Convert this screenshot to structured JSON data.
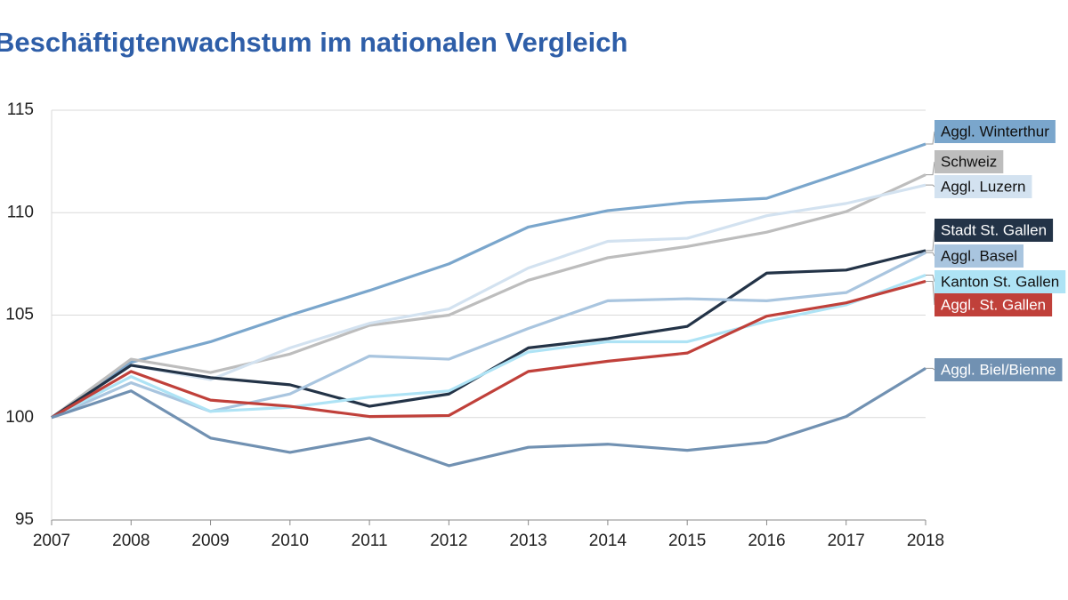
{
  "chart_data": {
    "type": "line",
    "title": "Beschäftigtenwachstum im nationalen Vergleich",
    "categories": [
      "2007",
      "2008",
      "2009",
      "2010",
      "2011",
      "2012",
      "2013",
      "2014",
      "2015",
      "2016",
      "2017",
      "2018"
    ],
    "ylim": [
      95,
      115
    ],
    "yticks": [
      95,
      100,
      105,
      110,
      115
    ],
    "grid": true,
    "series": [
      {
        "name": "Aggl. Winterthur",
        "color": "#7aa6cc",
        "values": [
          100,
          102.7,
          103.7,
          105.0,
          106.2,
          107.5,
          109.3,
          110.1,
          110.5,
          110.7,
          112.0,
          113.35
        ]
      },
      {
        "name": "Schweiz",
        "color": "#bdbdbd",
        "values": [
          100,
          102.85,
          102.2,
          103.1,
          104.5,
          105.0,
          106.7,
          107.8,
          108.35,
          109.05,
          110.05,
          111.85
        ]
      },
      {
        "name": "Aggl. Luzern",
        "color": "#d3e2f0",
        "values": [
          100,
          102.55,
          101.85,
          103.4,
          104.6,
          105.3,
          107.3,
          108.6,
          108.75,
          109.85,
          110.45,
          111.35
        ]
      },
      {
        "name": "Stadt St. Gallen",
        "color": "#233347",
        "values": [
          100,
          102.55,
          101.95,
          101.6,
          100.55,
          101.15,
          103.4,
          103.85,
          104.45,
          107.05,
          107.2,
          108.15
        ]
      },
      {
        "name": "Aggl. Basel",
        "color": "#a9c5df",
        "values": [
          100,
          101.7,
          100.3,
          101.15,
          103.0,
          102.85,
          104.35,
          105.7,
          105.8,
          105.7,
          106.1,
          108.05
        ]
      },
      {
        "name": "Kanton St. Gallen",
        "color": "#aee3f5",
        "values": [
          100,
          102.0,
          100.3,
          100.5,
          101.0,
          101.3,
          103.2,
          103.7,
          103.7,
          104.7,
          105.5,
          106.95
        ]
      },
      {
        "name": "Aggl. St. Gallen",
        "color": "#c0403a",
        "values": [
          100,
          102.25,
          100.85,
          100.55,
          100.05,
          100.1,
          102.25,
          102.75,
          103.15,
          104.95,
          105.6,
          106.65
        ]
      },
      {
        "name": "Aggl. Biel/Bienne",
        "color": "#7191b2",
        "values": [
          100,
          101.3,
          99.0,
          98.3,
          99.0,
          97.65,
          98.55,
          98.7,
          98.4,
          98.8,
          100.05,
          102.4
        ]
      }
    ]
  }
}
